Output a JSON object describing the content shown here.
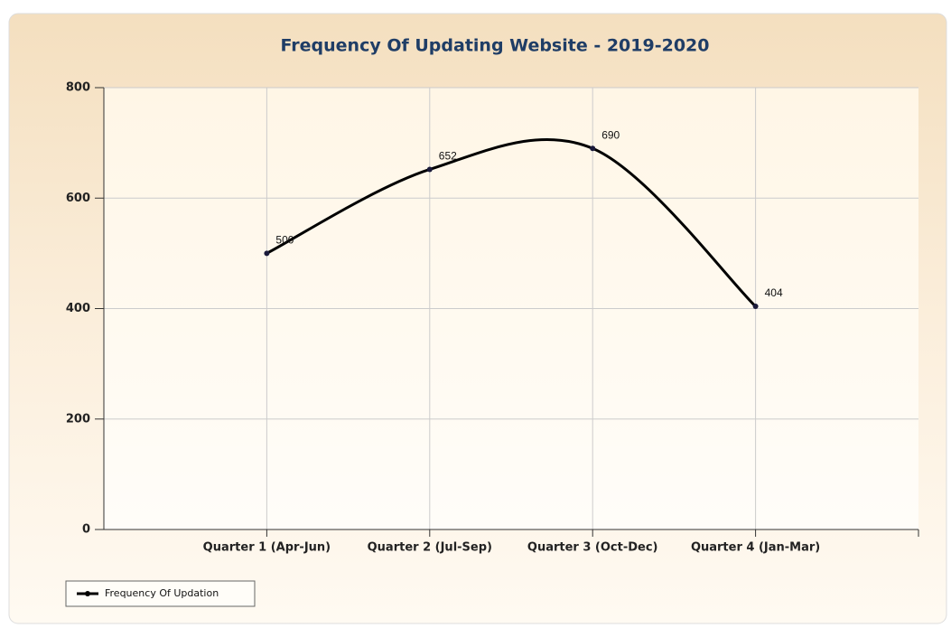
{
  "chart_data": {
    "type": "line",
    "title": "Frequency Of Updating Website - 2019-2020",
    "categories": [
      "Quarter 1 (Apr-Jun)",
      "Quarter 2 (Jul-Sep)",
      "Quarter 3 (Oct-Dec)",
      "Quarter 4 (Jan-Mar)"
    ],
    "series": [
      {
        "name": "Frequency Of Updation",
        "color": "#000000",
        "values": [
          500,
          652,
          690,
          404
        ]
      }
    ],
    "ylim": [
      0,
      800
    ],
    "yticks": [
      0,
      200,
      400,
      600,
      800
    ],
    "grid": true,
    "legend": "bottom-left",
    "smooth": true
  }
}
